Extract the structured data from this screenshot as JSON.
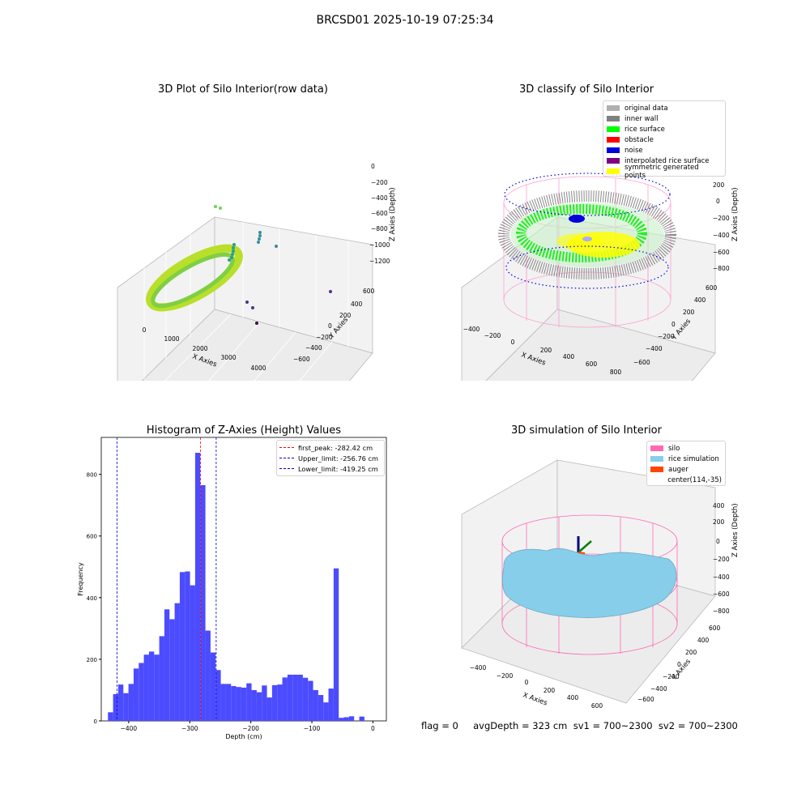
{
  "suptitle": "BRCSD01 2025-10-19 07:25:34",
  "panels": {
    "tl": {
      "title": "3D Plot of Silo Interior(row data)",
      "xlabel": "X Axies",
      "ylabel": "Y Axies",
      "zlabel": "Z Axies (Depth)",
      "xticks": [
        "0",
        "1000",
        "2000",
        "3000",
        "4000"
      ],
      "yticks": [
        "600",
        "400",
        "200",
        "0",
        "−200",
        "−400",
        "−600"
      ],
      "zticks": [
        "0",
        "−200",
        "−400",
        "−600",
        "−800",
        "−1000",
        "−1200"
      ]
    },
    "tr": {
      "title": "3D classify of Silo Interior",
      "xlabel": "X Axies",
      "ylabel": "Y Axies",
      "zlabel": "Z Axies (Depth)",
      "xticks": [
        "−400",
        "−200",
        "0",
        "200",
        "400",
        "600",
        "800"
      ],
      "yticks": [
        "600",
        "400",
        "200",
        "0",
        "−200",
        "−400",
        "−600"
      ],
      "zticks": [
        "200",
        "0",
        "−200",
        "−400",
        "−600",
        "−800"
      ],
      "legend": [
        {
          "label": "original data",
          "color": "#b0b0b0"
        },
        {
          "label": "inner wall",
          "color": "#808080"
        },
        {
          "label": "rice surface",
          "color": "#00ff00"
        },
        {
          "label": "obstacle",
          "color": "#ff0000"
        },
        {
          "label": "noise",
          "color": "#0000dd"
        },
        {
          "label": "interpolated rice surface",
          "color": "#800080"
        },
        {
          "label": "symmetric generated points",
          "color": "#ffff00"
        }
      ]
    },
    "br": {
      "title": "3D simulation of Silo Interior",
      "xlabel": "X Axies",
      "ylabel": "Y Axies",
      "zlabel": "Z Axies (Depth)",
      "xticks": [
        "−400",
        "−200",
        "0",
        "200",
        "400",
        "600"
      ],
      "yticks": [
        "600",
        "400",
        "200",
        "0",
        "−200",
        "−400",
        "−600"
      ],
      "zticks": [
        "400",
        "200",
        "0",
        "−200",
        "−400",
        "−600",
        "−800"
      ],
      "legend": [
        {
          "label": "silo",
          "color": "#ff69b4"
        },
        {
          "label": "rice simulation",
          "color": "#87ceeb"
        },
        {
          "label": "auger",
          "color": "#ff4500"
        },
        {
          "label": "center(114,-35)",
          "color": ""
        }
      ]
    }
  },
  "chart_data": [
    {
      "type": "scatter",
      "title": "3D Plot of Silo Interior(row data)",
      "xlabel": "X Axies",
      "ylabel": "Y Axies",
      "zlabel": "Z Axies (Depth)",
      "xlim": [
        -500,
        4300
      ],
      "ylim": [
        -700,
        700
      ],
      "zlim": [
        -1350,
        50
      ]
    },
    {
      "type": "scatter",
      "title": "3D classify of Silo Interior",
      "xlabel": "X Axies",
      "ylabel": "Y Axies",
      "zlabel": "Z Axies (Depth)",
      "xlim": [
        -500,
        850
      ],
      "ylim": [
        -700,
        700
      ],
      "zlim": [
        -900,
        300
      ],
      "series": [
        {
          "name": "original data"
        },
        {
          "name": "inner wall"
        },
        {
          "name": "rice surface"
        },
        {
          "name": "obstacle"
        },
        {
          "name": "noise"
        },
        {
          "name": "interpolated rice surface"
        },
        {
          "name": "symmetric generated points"
        }
      ]
    },
    {
      "type": "bar",
      "title": "Histogram of Z-Axies (Height) Values",
      "xlabel": "Depth (cm)",
      "ylabel": "Frequency",
      "xlim": [
        -445,
        22
      ],
      "ylim": [
        0,
        920
      ],
      "xticks": [
        -400,
        -300,
        -200,
        -100,
        0
      ],
      "yticks": [
        0,
        200,
        400,
        600,
        800
      ],
      "bin_start": -434,
      "bin_width": 8.4,
      "values": [
        28,
        87,
        118,
        90,
        120,
        170,
        188,
        215,
        225,
        215,
        275,
        362,
        330,
        382,
        483,
        485,
        440,
        870,
        765,
        293,
        222,
        165,
        120,
        120,
        113,
        110,
        108,
        122,
        100,
        93,
        115,
        76,
        116,
        118,
        141,
        150,
        150,
        150,
        140,
        130,
        100,
        84,
        60,
        105,
        495,
        10,
        12,
        15,
        0,
        14
      ],
      "lines": [
        {
          "name": "first_peak: -282.42 cm",
          "x": -282.42,
          "color": "#ff0000"
        },
        {
          "name": "Upper_limit: -256.76 cm",
          "x": -256.76,
          "color": "#0000cc"
        },
        {
          "name": "Lower_limit: -419.25 cm",
          "x": -419.25,
          "color": "#0000cc"
        }
      ],
      "legend_position": "top-right"
    },
    {
      "type": "scatter",
      "title": "3D simulation of Silo Interior",
      "xlabel": "X Axies",
      "ylabel": "Y Axies",
      "zlabel": "Z Axies (Depth)",
      "xlim": [
        -500,
        750
      ],
      "ylim": [
        -700,
        700
      ],
      "zlim": [
        -900,
        450
      ],
      "series": [
        {
          "name": "silo"
        },
        {
          "name": "rice simulation"
        },
        {
          "name": "auger"
        },
        {
          "name": "center(114,-35)"
        }
      ]
    }
  ],
  "footer": "flag = 0     avgDepth = 323 cm  sv1 = 700~2300  sv2 = 700~2300"
}
